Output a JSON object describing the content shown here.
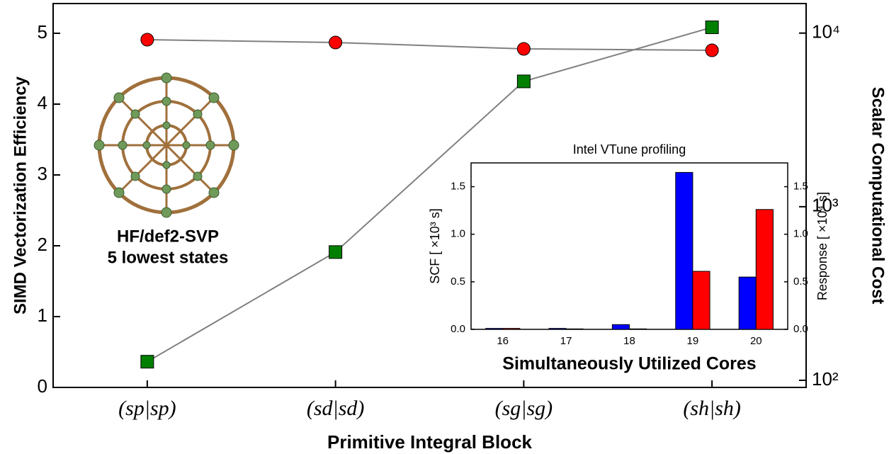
{
  "chart_data": [
    {
      "type": "line",
      "categories": [
        "(sp|sp)",
        "(sd|sd)",
        "(sg|sg)",
        "(sh|sh)"
      ],
      "xlabel": "Primitive Integral Block",
      "ylabel": "SIMD Vectorization Efficiency",
      "y2label": "Scalar Computational Cost",
      "annotations": [
        "HF/def2-SVP",
        "5 lowest states"
      ],
      "line_color": "#808080",
      "series": [
        {
          "color": "#ff0000",
          "marker": "circle",
          "values": [
            4.91,
            4.87,
            4.78,
            4.76
          ]
        },
        {
          "color": "#007f00",
          "marker": "square",
          "axis": "y2",
          "values": [
            128,
            548,
            5270,
            10800
          ]
        }
      ],
      "ylim": [
        0,
        5.42
      ],
      "yticks": [
        0,
        1,
        2,
        3,
        4,
        5
      ],
      "y2scale": "log",
      "y2lim": [
        91,
        14800
      ],
      "y2ticks": [
        {
          "value": 100,
          "label": "10²"
        },
        {
          "value": 1000,
          "label": "10³"
        },
        {
          "value": 10000,
          "label": "10⁴"
        }
      ]
    },
    {
      "type": "bar",
      "title": "Intel VTune profiling",
      "categories": [
        "16",
        "17",
        "18",
        "19",
        "20"
      ],
      "xlabel": "Simultaneously Utilized Cores",
      "ylabel": "SCF [ ×10³ s]",
      "y2label": "Response [ ×10⁴ s]",
      "series": [
        {
          "color": "#0000ff",
          "values": [
            0.01,
            0.01,
            0.05,
            1.65,
            0.55
          ]
        },
        {
          "color": "#ff0000",
          "axis": "y2",
          "values": [
            0.01,
            0.005,
            0.005,
            0.61,
            1.26
          ]
        }
      ],
      "ylim": [
        0,
        1.75
      ],
      "yticks": [
        {
          "value": 0,
          "label": "0.0"
        },
        {
          "value": 0.5,
          "label": "0.5"
        },
        {
          "value": 1,
          "label": "1.0"
        },
        {
          "value": 1.5,
          "label": "1.5"
        }
      ],
      "y2lim": [
        0,
        1.75
      ],
      "y2ticks": [
        {
          "value": 0,
          "label": "0.0"
        },
        {
          "value": 0.5,
          "label": "0.5"
        },
        {
          "value": 1,
          "label": "1.0"
        },
        {
          "value": 1.5,
          "label": "1.5"
        }
      ]
    }
  ]
}
